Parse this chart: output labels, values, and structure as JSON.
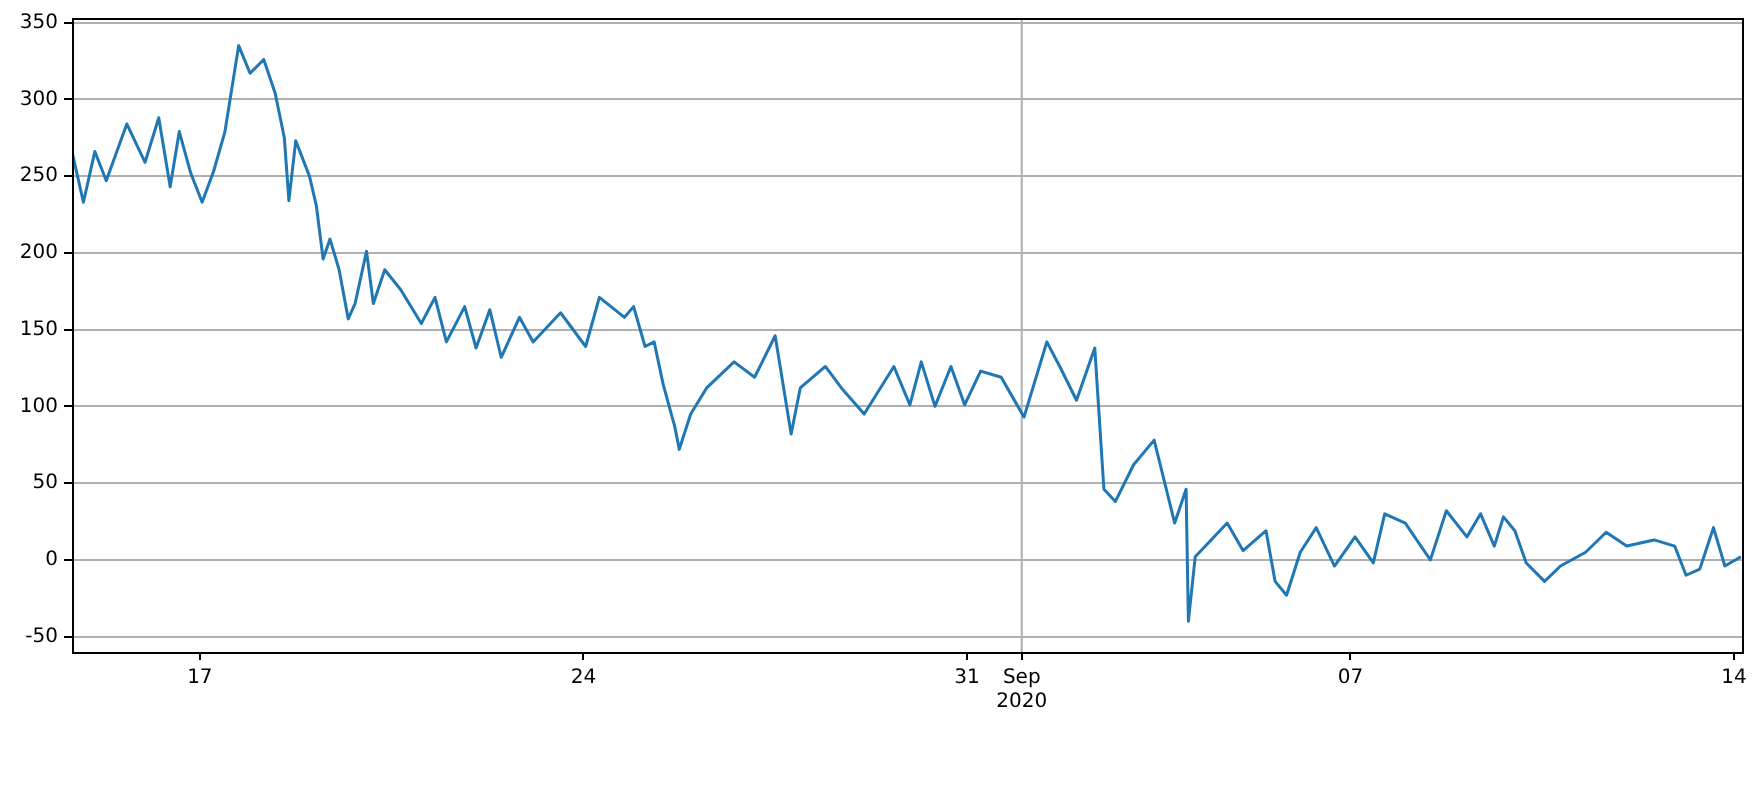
{
  "chart_data": {
    "type": "line",
    "x": [
      "2020-08-14T16:00",
      "2020-08-14T21:00",
      "2020-08-15T02:00",
      "2020-08-15T07:00",
      "2020-08-15T16:00",
      "2020-08-16T00:00",
      "2020-08-16T06:00",
      "2020-08-16T11:00",
      "2020-08-16T15:00",
      "2020-08-16T20:00",
      "2020-08-17T01:00",
      "2020-08-17T06:00",
      "2020-08-17T11:00",
      "2020-08-17T14:00",
      "2020-08-17T17:00",
      "2020-08-17T22:00",
      "2020-08-18T04:00",
      "2020-08-18T09:00",
      "2020-08-18T13:00",
      "2020-08-18T15:00",
      "2020-08-18T18:00",
      "2020-08-19T00:00",
      "2020-08-19T03:00",
      "2020-08-19T06:00",
      "2020-08-19T09:00",
      "2020-08-19T13:00",
      "2020-08-19T17:00",
      "2020-08-19T20:00",
      "2020-08-20T01:00",
      "2020-08-20T04:00",
      "2020-08-20T09:00",
      "2020-08-20T16:00",
      "2020-08-21T01:00",
      "2020-08-21T07:00",
      "2020-08-21T12:00",
      "2020-08-21T20:00",
      "2020-08-22T01:00",
      "2020-08-22T07:00",
      "2020-08-22T12:00",
      "2020-08-22T20:00",
      "2020-08-23T02:00",
      "2020-08-23T14:00",
      "2020-08-24T01:00",
      "2020-08-24T07:00",
      "2020-08-24T18:00",
      "2020-08-24T22:00",
      "2020-08-25T03:00",
      "2020-08-25T07:00",
      "2020-08-25T11:00",
      "2020-08-25T16:00",
      "2020-08-25T18:00",
      "2020-08-25T23:00",
      "2020-08-26T06:00",
      "2020-08-26T18:00",
      "2020-08-27T03:00",
      "2020-08-27T12:00",
      "2020-08-27T19:00",
      "2020-08-27T23:00",
      "2020-08-28T10:00",
      "2020-08-28T17:00",
      "2020-08-29T03:00",
      "2020-08-29T16:00",
      "2020-08-29T23:00",
      "2020-08-30T04:00",
      "2020-08-30T10:00",
      "2020-08-30T17:00",
      "2020-08-30T23:00",
      "2020-08-31T06:00",
      "2020-08-31T15:00",
      "2020-09-01T01:00",
      "2020-09-01T11:00",
      "2020-09-01T17:00",
      "2020-09-02T00:00",
      "2020-09-02T08:00",
      "2020-09-02T12:00",
      "2020-09-02T17:00",
      "2020-09-03T01:00",
      "2020-09-03T10:00",
      "2020-09-03T19:00",
      "2020-09-04T00:00",
      "2020-09-04T01:00",
      "2020-09-04T04:00",
      "2020-09-04T18:00",
      "2020-09-05T01:00",
      "2020-09-05T11:00",
      "2020-09-05T15:00",
      "2020-09-05T20:00",
      "2020-09-06T02:00",
      "2020-09-06T09:00",
      "2020-09-06T17:00",
      "2020-09-07T02:00",
      "2020-09-07T10:00",
      "2020-09-07T15:00",
      "2020-09-08T00:00",
      "2020-09-08T11:00",
      "2020-09-08T18:00",
      "2020-09-09T03:00",
      "2020-09-09T09:00",
      "2020-09-09T15:00",
      "2020-09-09T19:00",
      "2020-09-10T00:00",
      "2020-09-10T05:00",
      "2020-09-10T13:00",
      "2020-09-10T20:00",
      "2020-09-11T07:00",
      "2020-09-11T16:00",
      "2020-09-12T01:00",
      "2020-09-12T13:00",
      "2020-09-12T22:00",
      "2020-09-13T03:00",
      "2020-09-13T09:00",
      "2020-09-13T15:00",
      "2020-09-13T20:00",
      "2020-09-14T03:00"
    ],
    "series": [
      {
        "color": "#1f77b4",
        "values": [
          266,
          233,
          266,
          247,
          284,
          259,
          288,
          243,
          279,
          252,
          233,
          253,
          279,
          307,
          335,
          317,
          326,
          304,
          275,
          234,
          273,
          250,
          231,
          196,
          209,
          189,
          157,
          167,
          201,
          167,
          189,
          176,
          154,
          171,
          142,
          165,
          138,
          163,
          132,
          158,
          142,
          161,
          139,
          171,
          158,
          165,
          139,
          142,
          114,
          87,
          72,
          95,
          112,
          129,
          119,
          146,
          82,
          112,
          126,
          112,
          95,
          126,
          101,
          129,
          100,
          126,
          101,
          123,
          119,
          93,
          142,
          125,
          104,
          138,
          46,
          38,
          62,
          78,
          24,
          46,
          -40,
          2,
          24,
          6,
          19,
          -14,
          -23,
          5,
          21,
          -4,
          15,
          -2,
          30,
          24,
          0,
          32,
          15,
          30,
          9,
          28,
          19,
          -2,
          -14,
          -4,
          5,
          18,
          9,
          13,
          9,
          -10,
          -6,
          21,
          -4,
          2
        ]
      }
    ],
    "xlim": [
      "2020-08-14T16:00",
      "2020-09-14T03:30"
    ],
    "xticks": [
      {
        "value": "2020-08-17",
        "label": "17"
      },
      {
        "value": "2020-08-24",
        "label": "24"
      },
      {
        "value": "2020-08-31",
        "label": "31"
      },
      {
        "value": "2020-09-01",
        "label": "Sep\n2020"
      },
      {
        "value": "2020-09-07",
        "label": "07"
      },
      {
        "value": "2020-09-14",
        "label": "14"
      }
    ],
    "ylim": [
      -60,
      353
    ],
    "yticks": [
      -50,
      0,
      50,
      100,
      150,
      200,
      250,
      300,
      350
    ],
    "grid": "y",
    "ref_lines": [
      {
        "axis": "x",
        "value": "2020-09-01",
        "color": "#b0b0b0"
      }
    ]
  }
}
